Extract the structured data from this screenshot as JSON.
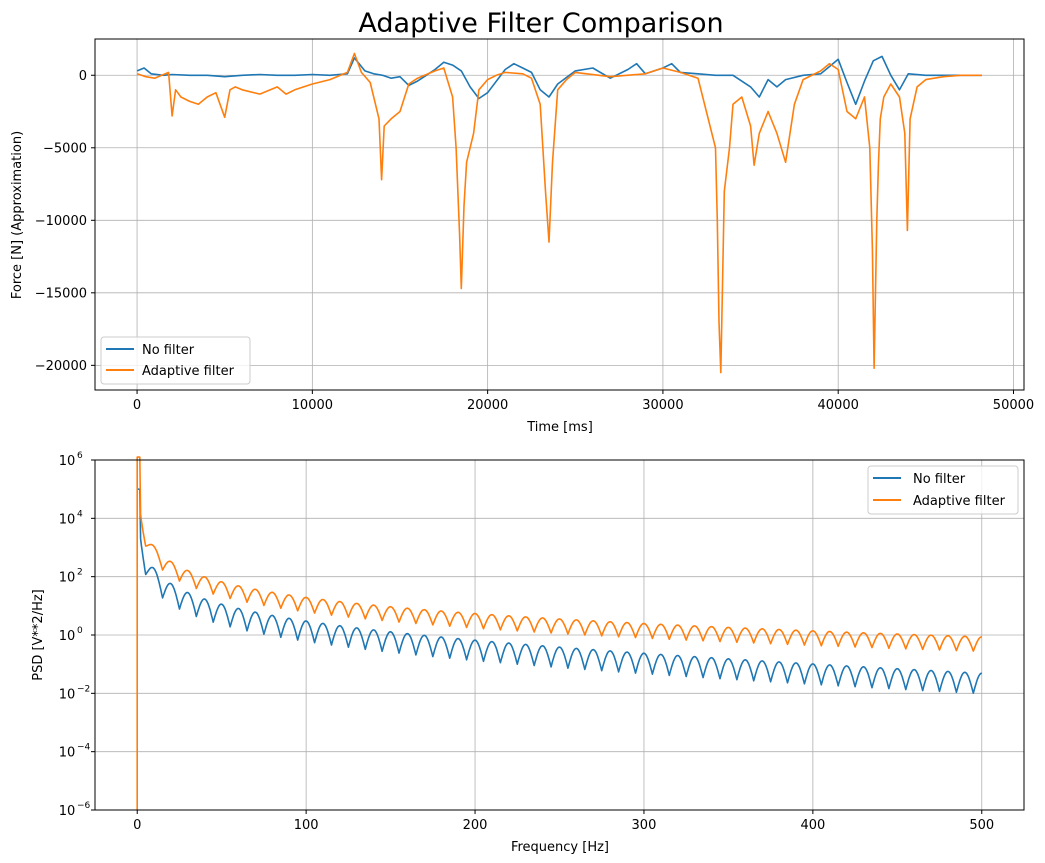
{
  "figure_title": "Adaptive Filter Comparison",
  "colors": {
    "no_filter": "#1f77b4",
    "adaptive": "#ff7f0e",
    "grid": "#b0b0b0"
  },
  "chart_data": [
    {
      "type": "line",
      "title": "Adaptive Filter Comparison",
      "xlabel": "Time [ms]",
      "ylabel": "Force [N] (Approximation)",
      "xlim": [
        -2400,
        50600
      ],
      "ylim": [
        -21700,
        2500
      ],
      "yscale": "linear",
      "xticks": [
        0,
        10000,
        20000,
        30000,
        40000,
        50000
      ],
      "xtick_labels": [
        "0",
        "10000",
        "20000",
        "30000",
        "40000",
        "50000"
      ],
      "yticks": [
        0,
        -5000,
        -10000,
        -15000,
        -20000
      ],
      "ytick_labels": [
        "0",
        "−5000",
        "−10000",
        "−15000",
        "−20000"
      ],
      "grid": true,
      "legend_position": "lower-left",
      "series": [
        {
          "name": "No filter",
          "x": [
            0,
            400,
            800,
            1500,
            2000,
            3000,
            4000,
            5000,
            6000,
            7000,
            8000,
            9000,
            10000,
            11000,
            12000,
            12400,
            13000,
            13500,
            14000,
            14500,
            15000,
            15500,
            16000,
            16500,
            17000,
            17500,
            18000,
            18500,
            19000,
            19500,
            20000,
            21000,
            21500,
            22000,
            22500,
            23000,
            23500,
            24000,
            25000,
            26000,
            27000,
            28000,
            28500,
            29000,
            30000,
            30500,
            31000,
            32000,
            33000,
            34000,
            35000,
            35500,
            36000,
            36500,
            37000,
            38000,
            39000,
            39500,
            40000,
            40500,
            41000,
            41500,
            42000,
            42500,
            43000,
            43500,
            44000,
            45000,
            46000,
            47000,
            48200
          ],
          "y": [
            300,
            500,
            100,
            0,
            50,
            0,
            0,
            -100,
            0,
            50,
            0,
            0,
            50,
            0,
            100,
            1200,
            300,
            100,
            0,
            -200,
            -100,
            -700,
            -400,
            0,
            400,
            900,
            700,
            300,
            -800,
            -1600,
            -1200,
            400,
            800,
            500,
            200,
            -1000,
            -1500,
            -600,
            300,
            500,
            -200,
            400,
            800,
            100,
            500,
            800,
            200,
            100,
            0,
            0,
            -800,
            -1500,
            -300,
            -800,
            -300,
            0,
            100,
            600,
            1100,
            -500,
            -2000,
            -400,
            1000,
            1300,
            0,
            -1000,
            100,
            0,
            0,
            0,
            0
          ]
        },
        {
          "name": "Adaptive filter",
          "x": [
            0,
            500,
            1000,
            1800,
            2000,
            2200,
            2500,
            3000,
            3500,
            4000,
            4500,
            5000,
            5300,
            5600,
            6000,
            7000,
            8000,
            8500,
            9000,
            10000,
            11000,
            12000,
            12400,
            12800,
            13300,
            13800,
            13950,
            14100,
            14500,
            15000,
            15500,
            16000,
            17000,
            17500,
            18000,
            18200,
            18400,
            18500,
            18650,
            18800,
            19000,
            19200,
            19500,
            20000,
            20500,
            21000,
            22000,
            22500,
            23000,
            23300,
            23500,
            23700,
            24000,
            24500,
            25000,
            27000,
            29000,
            30000,
            31000,
            32000,
            33000,
            33100,
            33200,
            33300,
            33500,
            33800,
            34000,
            34500,
            35000,
            35200,
            35500,
            36000,
            36500,
            37000,
            37500,
            38000,
            39000,
            39500,
            40000,
            40500,
            41000,
            41500,
            41800,
            41950,
            42050,
            42200,
            42300,
            42400,
            42600,
            43000,
            43500,
            43800,
            43950,
            44100,
            44500,
            45000,
            46000,
            47000,
            48200
          ],
          "y": [
            100,
            -100,
            -200,
            200,
            -2800,
            -1000,
            -1500,
            -1800,
            -2000,
            -1500,
            -1200,
            -2900,
            -1000,
            -800,
            -1000,
            -1300,
            -800,
            -1300,
            -1000,
            -600,
            -300,
            200,
            1500,
            200,
            -500,
            -3000,
            -7200,
            -3500,
            -3000,
            -2500,
            -600,
            -200,
            300,
            500,
            -1500,
            -5000,
            -11000,
            -14700,
            -9000,
            -6000,
            -5000,
            -4000,
            -1000,
            -300,
            0,
            200,
            100,
            -200,
            -2000,
            -8000,
            -11500,
            -6000,
            -1000,
            -300,
            200,
            -100,
            100,
            500,
            200,
            -200,
            -5000,
            -10000,
            -17000,
            -20500,
            -8000,
            -5000,
            -2000,
            -1500,
            -3500,
            -6200,
            -4000,
            -2500,
            -4000,
            -6000,
            -2000,
            -300,
            300,
            800,
            400,
            -2500,
            -3000,
            -1500,
            -5000,
            -12000,
            -20200,
            -10000,
            -6000,
            -3000,
            -1500,
            -600,
            -1500,
            -4000,
            -10700,
            -3000,
            -800,
            -300,
            -100,
            0,
            0
          ]
        }
      ]
    },
    {
      "type": "line",
      "xlabel": "Frequency [Hz]",
      "ylabel": "PSD [V**2/Hz]",
      "xlim": [
        -25,
        525
      ],
      "ylim_log10": [
        -6,
        6
      ],
      "yscale": "log",
      "xticks": [
        0,
        100,
        200,
        300,
        400,
        500
      ],
      "xtick_labels": [
        "0",
        "100",
        "200",
        "300",
        "400",
        "500"
      ],
      "yticks": [
        -6,
        -4,
        -2,
        0,
        2,
        4,
        6
      ],
      "ytick_labels": [
        "10",
        "10",
        "10",
        "10",
        "10",
        "10",
        "10"
      ],
      "ytick_exponents": [
        "−6",
        "−4",
        "−2",
        "0",
        "2",
        "4",
        "6"
      ],
      "grid": true,
      "legend_position": "upper-right",
      "series": [
        {
          "name": "No filter",
          "spectrum": {
            "f_end": 500,
            "peak_log10": 5.0,
            "a": 3.3,
            "b": -0.8,
            "k": 0.55,
            "ripple_hz": 10,
            "ripple_depth": 0.7
          }
        },
        {
          "name": "Adaptive filter",
          "spectrum": {
            "f_end": 500,
            "peak_log10": 6.1,
            "a": 4.3,
            "b": -0.2,
            "k": 0.57,
            "ripple_hz": 10,
            "ripple_depth": 0.5,
            "dc_log10": -6
          }
        }
      ]
    }
  ]
}
